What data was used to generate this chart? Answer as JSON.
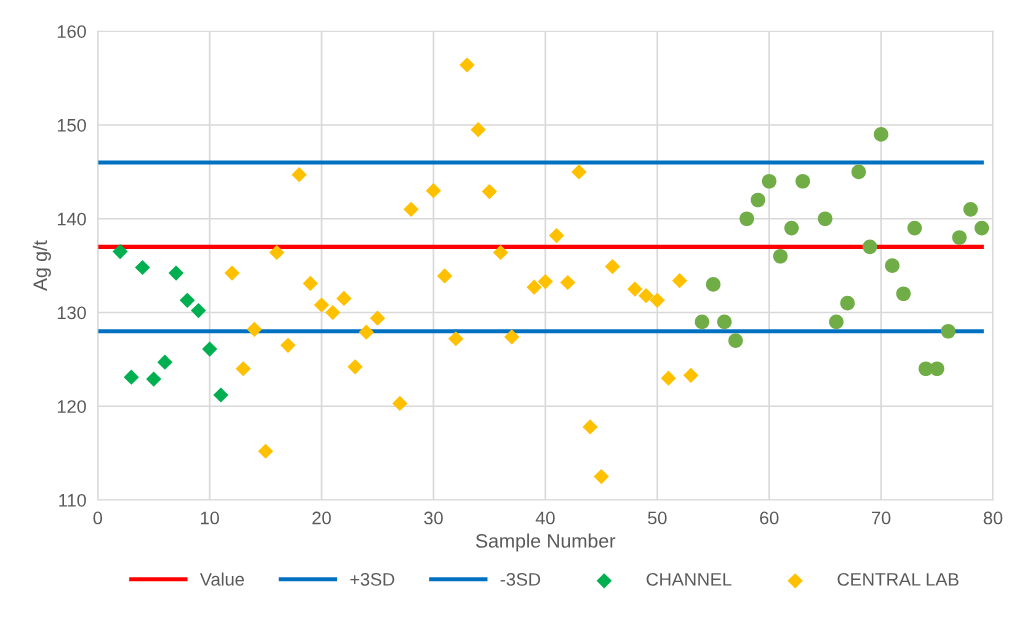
{
  "chart_data": {
    "type": "scatter",
    "xlabel": "Sample Number",
    "ylabel": "Ag g/t",
    "xlim": [
      0,
      80
    ],
    "xticks": [
      0,
      10,
      20,
      30,
      40,
      50,
      60,
      70,
      80
    ],
    "ylim": [
      110,
      160
    ],
    "yticks": [
      110,
      120,
      130,
      140,
      150,
      160
    ],
    "grid": true,
    "legend": "bottom",
    "series": [
      {
        "name": "Value",
        "type": "line",
        "color": "#ff0000",
        "marker": "none",
        "line_style": "solid",
        "x": [
          0,
          79
        ],
        "values": [
          137,
          137
        ]
      },
      {
        "name": "+3SD",
        "type": "line",
        "color": "#0070c0",
        "marker": "none",
        "line_style": "solid",
        "x": [
          0,
          79
        ],
        "values": [
          146,
          146
        ]
      },
      {
        "name": "-3SD",
        "type": "line",
        "color": "#0070c0",
        "marker": "none",
        "line_style": "solid",
        "x": [
          0,
          79
        ],
        "values": [
          128,
          128
        ]
      },
      {
        "name": "CHANNEL",
        "color": "#00b050",
        "marker": "diamond",
        "x": [
          2,
          3,
          4,
          5,
          6,
          7,
          8,
          9,
          10,
          11
        ],
        "values": [
          136.5,
          123.1,
          134.8,
          122.9,
          124.7,
          134.2,
          131.3,
          130.2,
          126.1,
          121.2
        ]
      },
      {
        "name": "CENTRAL LAB",
        "color": "#ffc000",
        "marker": "diamond",
        "x": [
          12,
          13,
          14,
          15,
          16,
          17,
          18,
          19,
          20,
          21,
          22,
          23,
          24,
          25,
          27,
          28,
          30,
          31,
          32,
          33,
          34,
          35,
          36,
          37,
          39,
          40,
          41,
          42,
          43,
          44,
          45,
          46,
          48,
          49,
          50,
          51,
          52,
          53
        ],
        "values": [
          134.2,
          124,
          128.2,
          115.2,
          136.4,
          126.5,
          144.7,
          133.1,
          130.8,
          130,
          131.5,
          124.2,
          127.9,
          129.4,
          120.3,
          141,
          143,
          133.9,
          127.2,
          156.4,
          149.5,
          142.9,
          136.4,
          127.4,
          132.7,
          133.3,
          138.2,
          133.2,
          145,
          117.8,
          112.5,
          134.9,
          132.5,
          131.8,
          131.3,
          123,
          133.4,
          123.3
        ]
      },
      {
        "color": "#70ad47",
        "marker": "circle",
        "x": [
          54,
          55,
          56,
          57,
          58,
          59,
          60,
          61,
          62,
          63,
          65,
          66,
          67,
          68,
          69,
          70,
          71,
          72,
          73,
          74,
          75,
          76,
          77,
          78,
          79
        ],
        "values": [
          129,
          133,
          129,
          127,
          140,
          142,
          144,
          136,
          139,
          144,
          140,
          129,
          131,
          145,
          137,
          149,
          135,
          132,
          139,
          124,
          124,
          128,
          138,
          141,
          139
        ]
      }
    ]
  }
}
